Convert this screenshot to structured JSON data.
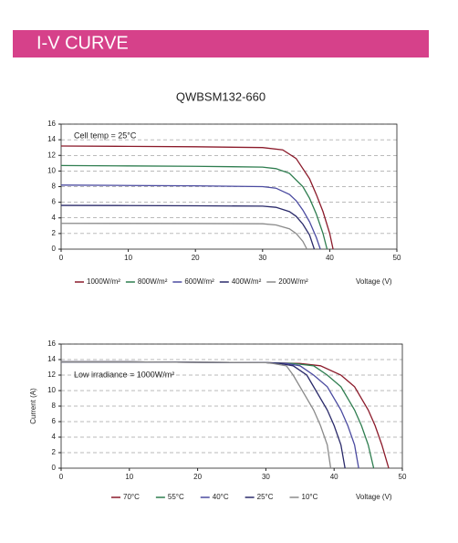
{
  "header": {
    "title": "I-V CURVE"
  },
  "chart_data": [
    {
      "type": "line",
      "title": "QWBSM132-660",
      "annotation": "Cell temp = 25°C",
      "x_label": "Voltage (V)",
      "xlim": [
        0,
        50
      ],
      "xticks": [
        0,
        10,
        20,
        30,
        40,
        50
      ],
      "ylim": [
        0,
        16
      ],
      "yticks": [
        0,
        2,
        4,
        6,
        8,
        10,
        12,
        14,
        16
      ],
      "grid": true,
      "series": [
        {
          "name": "1000W/m²",
          "color": "#8b1a2a",
          "x": [
            0,
            10,
            20,
            30,
            33,
            35,
            37,
            38,
            39,
            40,
            40.5
          ],
          "values": [
            13.2,
            13.15,
            13.1,
            13.0,
            12.7,
            11.6,
            9.0,
            7.0,
            4.8,
            2.0,
            0
          ]
        },
        {
          "name": "800W/m²",
          "color": "#2e7d4f",
          "x": [
            0,
            10,
            20,
            30,
            32,
            34,
            36,
            37,
            38,
            39,
            39.6
          ],
          "values": [
            10.7,
            10.65,
            10.6,
            10.5,
            10.3,
            9.7,
            8.0,
            6.5,
            4.5,
            2.0,
            0
          ]
        },
        {
          "name": "600W/m²",
          "color": "#4a4aa0",
          "x": [
            0,
            10,
            20,
            30,
            32,
            34,
            35,
            36,
            37,
            38,
            38.6
          ],
          "values": [
            8.2,
            8.15,
            8.1,
            8.0,
            7.8,
            7.0,
            6.2,
            5.0,
            3.5,
            1.5,
            0
          ]
        },
        {
          "name": "400W/m²",
          "color": "#2a2a6a",
          "x": [
            0,
            10,
            20,
            30,
            32,
            34,
            35,
            36,
            37,
            37.7
          ],
          "values": [
            5.6,
            5.58,
            5.55,
            5.5,
            5.35,
            4.8,
            4.2,
            3.2,
            1.8,
            0
          ]
        },
        {
          "name": "200W/m²",
          "color": "#8a8a8a",
          "x": [
            0,
            10,
            20,
            30,
            32,
            34,
            35,
            36,
            36.6
          ],
          "values": [
            3.3,
            3.29,
            3.28,
            3.25,
            3.1,
            2.6,
            2.0,
            1.0,
            0
          ]
        }
      ]
    },
    {
      "type": "line",
      "annotation": "Low irradiance = 1000W/m²",
      "x_label": "Voltage (V)",
      "y_label": "Current (A)",
      "xlim": [
        0,
        50
      ],
      "xticks": [
        0,
        10,
        20,
        30,
        40,
        50
      ],
      "ylim": [
        0,
        16
      ],
      "yticks": [
        0,
        2,
        4,
        6,
        8,
        10,
        12,
        14,
        16
      ],
      "grid": true,
      "series": [
        {
          "name": "70°C",
          "color": "#8b1a2a",
          "x": [
            0,
            10,
            20,
            30,
            35,
            38,
            41,
            43,
            45,
            46,
            47,
            48
          ],
          "values": [
            13.7,
            13.7,
            13.65,
            13.6,
            13.5,
            13.2,
            12.0,
            10.5,
            7.5,
            5.5,
            3.0,
            0
          ]
        },
        {
          "name": "55°C",
          "color": "#2e7d4f",
          "x": [
            0,
            10,
            20,
            30,
            34,
            37,
            39,
            41,
            43,
            44,
            45,
            45.8
          ],
          "values": [
            13.7,
            13.7,
            13.65,
            13.6,
            13.5,
            13.2,
            12.0,
            10.5,
            7.5,
            5.5,
            3.0,
            0
          ]
        },
        {
          "name": "40°C",
          "color": "#4a4aa0",
          "x": [
            0,
            10,
            20,
            30,
            33,
            35,
            37,
            39,
            41,
            42,
            43,
            43.6
          ],
          "values": [
            13.7,
            13.7,
            13.65,
            13.6,
            13.5,
            13.2,
            12.0,
            10.5,
            7.5,
            5.5,
            3.0,
            0
          ]
        },
        {
          "name": "25°C",
          "color": "#2a2a6a",
          "x": [
            0,
            10,
            20,
            30,
            32,
            34,
            36,
            37,
            39,
            40,
            41,
            41.6
          ],
          "values": [
            13.7,
            13.7,
            13.65,
            13.6,
            13.5,
            13.2,
            12.0,
            10.5,
            7.5,
            5.5,
            3.0,
            0
          ]
        },
        {
          "name": "10°C",
          "color": "#8a8a8a",
          "x": [
            0,
            10,
            20,
            30,
            31,
            33,
            34,
            35,
            37,
            38,
            39,
            39.5
          ],
          "values": [
            13.7,
            13.7,
            13.65,
            13.6,
            13.5,
            13.2,
            12.0,
            10.5,
            7.5,
            5.5,
            3.0,
            0
          ]
        }
      ]
    }
  ]
}
